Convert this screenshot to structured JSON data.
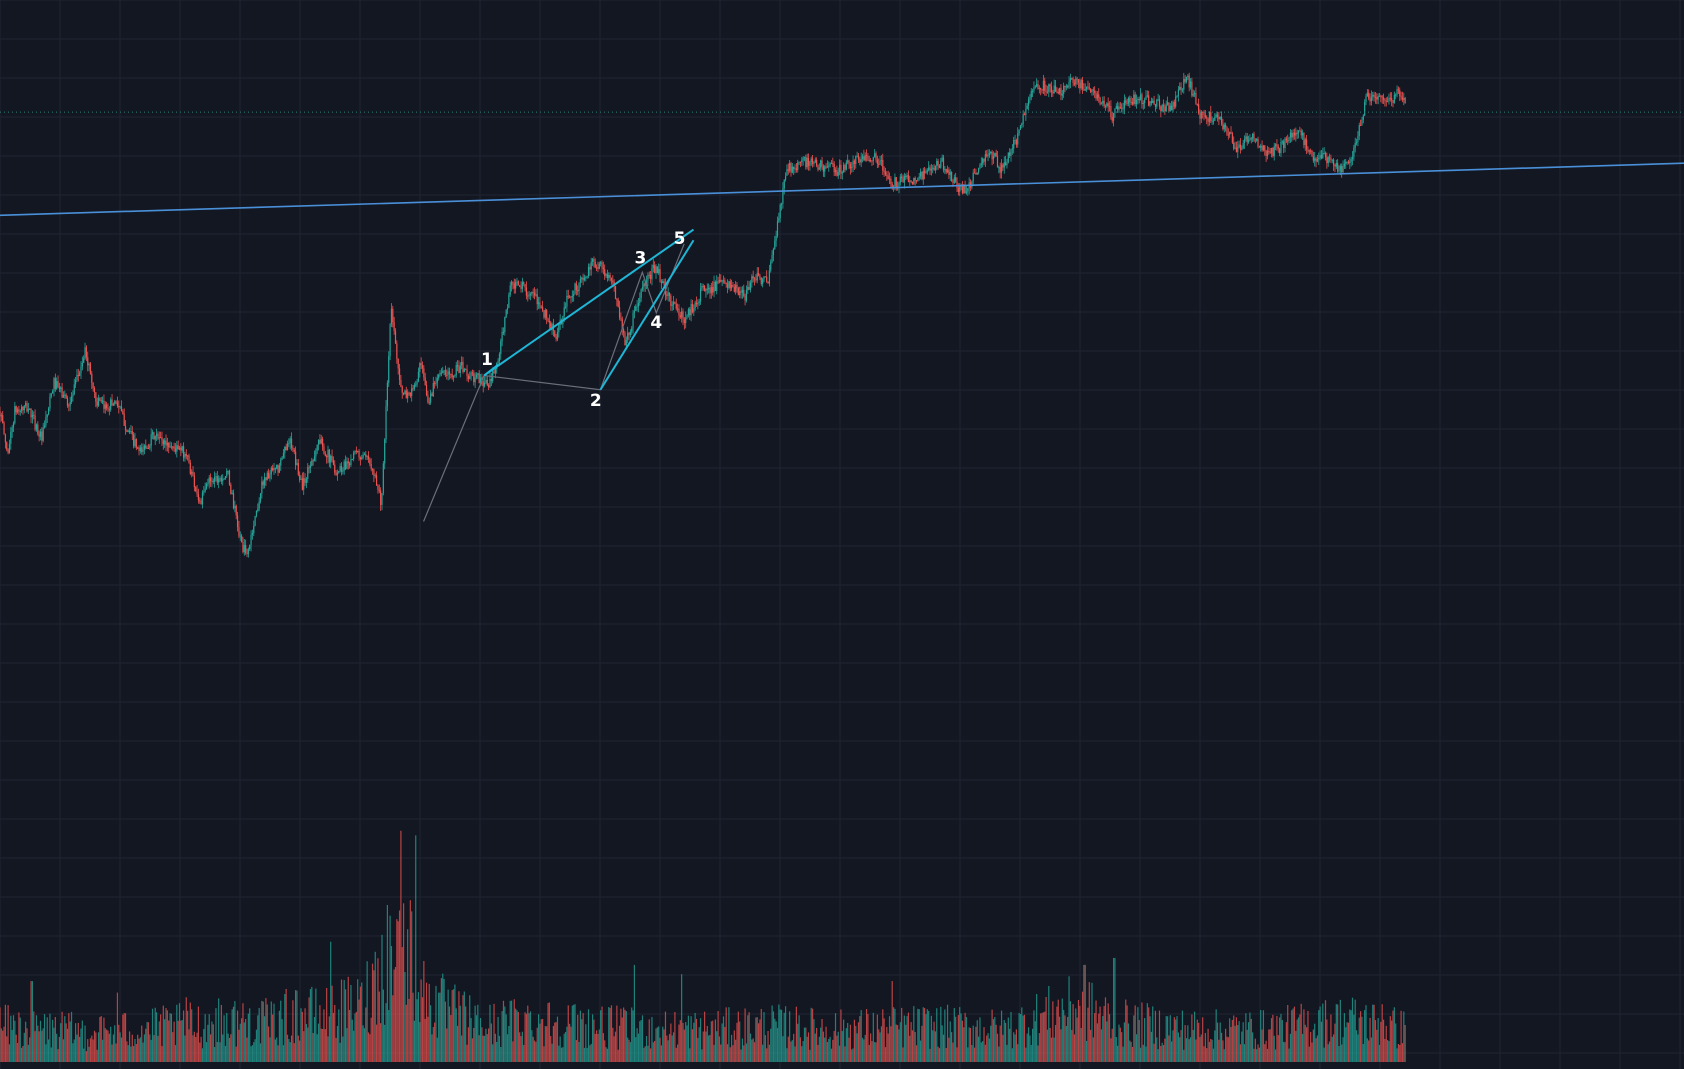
{
  "chart_data": {
    "type": "candlestick",
    "title": "",
    "xlabel": "",
    "ylabel": "",
    "grid": true,
    "ylim": [
      0,
      1000
    ],
    "xlim": [
      0,
      1000
    ],
    "colors": {
      "background": "#131722",
      "grid": "#1f2433",
      "up": "#26a69a",
      "down": "#ef5350",
      "trendline": "#4a90d9",
      "wedge": "#1fb6d6",
      "wave_path": "#6b6f7a",
      "price_line": "#2a7f7a"
    },
    "price_anchors": [
      {
        "x": 0,
        "y": 490
      },
      {
        "x": 8,
        "y": 430
      },
      {
        "x": 16,
        "y": 490
      },
      {
        "x": 30,
        "y": 495
      },
      {
        "x": 45,
        "y": 450
      },
      {
        "x": 58,
        "y": 530
      },
      {
        "x": 75,
        "y": 500
      },
      {
        "x": 92,
        "y": 575
      },
      {
        "x": 103,
        "y": 505
      },
      {
        "x": 112,
        "y": 495
      },
      {
        "x": 125,
        "y": 505
      },
      {
        "x": 135,
        "y": 470
      },
      {
        "x": 150,
        "y": 430
      },
      {
        "x": 165,
        "y": 455
      },
      {
        "x": 185,
        "y": 440
      },
      {
        "x": 200,
        "y": 430
      },
      {
        "x": 215,
        "y": 360
      },
      {
        "x": 225,
        "y": 395
      },
      {
        "x": 245,
        "y": 400
      },
      {
        "x": 258,
        "y": 310
      },
      {
        "x": 265,
        "y": 285
      },
      {
        "x": 283,
        "y": 395
      },
      {
        "x": 300,
        "y": 410
      },
      {
        "x": 310,
        "y": 453
      },
      {
        "x": 325,
        "y": 385
      },
      {
        "x": 343,
        "y": 450
      },
      {
        "x": 362,
        "y": 405
      },
      {
        "x": 383,
        "y": 430
      },
      {
        "x": 400,
        "y": 415
      },
      {
        "x": 410,
        "y": 360
      },
      {
        "x": 420,
        "y": 635
      },
      {
        "x": 432,
        "y": 510
      },
      {
        "x": 445,
        "y": 520
      },
      {
        "x": 452,
        "y": 555
      },
      {
        "x": 460,
        "y": 500
      },
      {
        "x": 470,
        "y": 545
      },
      {
        "x": 480,
        "y": 540
      },
      {
        "x": 495,
        "y": 553
      },
      {
        "x": 505,
        "y": 538
      },
      {
        "x": 515,
        "y": 535
      },
      {
        "x": 525,
        "y": 525
      },
      {
        "x": 535,
        "y": 558
      },
      {
        "x": 548,
        "y": 665
      },
      {
        "x": 562,
        "y": 665
      },
      {
        "x": 580,
        "y": 640
      },
      {
        "x": 598,
        "y": 593
      },
      {
        "x": 610,
        "y": 650
      },
      {
        "x": 630,
        "y": 680
      },
      {
        "x": 638,
        "y": 700
      },
      {
        "x": 645,
        "y": 695
      },
      {
        "x": 660,
        "y": 663
      },
      {
        "x": 672,
        "y": 585
      },
      {
        "x": 688,
        "y": 655
      },
      {
        "x": 705,
        "y": 695
      },
      {
        "x": 715,
        "y": 655
      },
      {
        "x": 735,
        "y": 618
      },
      {
        "x": 755,
        "y": 660
      },
      {
        "x": 780,
        "y": 670
      },
      {
        "x": 800,
        "y": 650
      },
      {
        "x": 810,
        "y": 682
      },
      {
        "x": 825,
        "y": 670
      },
      {
        "x": 845,
        "y": 830
      },
      {
        "x": 862,
        "y": 840
      },
      {
        "x": 882,
        "y": 835
      },
      {
        "x": 900,
        "y": 828
      },
      {
        "x": 920,
        "y": 842
      },
      {
        "x": 940,
        "y": 850
      },
      {
        "x": 958,
        "y": 810
      },
      {
        "x": 978,
        "y": 815
      },
      {
        "x": 998,
        "y": 825
      },
      {
        "x": 1012,
        "y": 840
      },
      {
        "x": 1030,
        "y": 800
      },
      {
        "x": 1040,
        "y": 805
      },
      {
        "x": 1055,
        "y": 843
      },
      {
        "x": 1068,
        "y": 850
      },
      {
        "x": 1075,
        "y": 830
      },
      {
        "x": 1092,
        "y": 870
      },
      {
        "x": 1110,
        "y": 950
      },
      {
        "x": 1125,
        "y": 945
      },
      {
        "x": 1140,
        "y": 940
      },
      {
        "x": 1152,
        "y": 955
      },
      {
        "x": 1170,
        "y": 942
      },
      {
        "x": 1185,
        "y": 925
      },
      {
        "x": 1195,
        "y": 905
      },
      {
        "x": 1210,
        "y": 925
      },
      {
        "x": 1225,
        "y": 930
      },
      {
        "x": 1245,
        "y": 920
      },
      {
        "x": 1258,
        "y": 915
      },
      {
        "x": 1275,
        "y": 960
      },
      {
        "x": 1290,
        "y": 905
      },
      {
        "x": 1310,
        "y": 900
      },
      {
        "x": 1330,
        "y": 855
      },
      {
        "x": 1345,
        "y": 880
      },
      {
        "x": 1360,
        "y": 850
      },
      {
        "x": 1375,
        "y": 860
      },
      {
        "x": 1395,
        "y": 885
      },
      {
        "x": 1410,
        "y": 845
      },
      {
        "x": 1425,
        "y": 845
      },
      {
        "x": 1440,
        "y": 830
      },
      {
        "x": 1455,
        "y": 855
      },
      {
        "x": 1468,
        "y": 930
      },
      {
        "x": 1480,
        "y": 925
      },
      {
        "x": 1492,
        "y": 925
      },
      {
        "x": 1500,
        "y": 935
      },
      {
        "x": 1510,
        "y": 930
      }
    ],
    "volume_profile": [
      {
        "x": 0,
        "v": 0.22
      },
      {
        "x": 100,
        "v": 0.18
      },
      {
        "x": 190,
        "v": 0.22
      },
      {
        "x": 250,
        "v": 0.25
      },
      {
        "x": 290,
        "v": 0.24
      },
      {
        "x": 320,
        "v": 0.3
      },
      {
        "x": 345,
        "v": 0.28
      },
      {
        "x": 390,
        "v": 0.35
      },
      {
        "x": 410,
        "v": 0.6
      },
      {
        "x": 425,
        "v": 0.72
      },
      {
        "x": 440,
        "v": 0.68
      },
      {
        "x": 455,
        "v": 0.4
      },
      {
        "x": 480,
        "v": 0.32
      },
      {
        "x": 520,
        "v": 0.22
      },
      {
        "x": 560,
        "v": 0.26
      },
      {
        "x": 640,
        "v": 0.22
      },
      {
        "x": 700,
        "v": 0.2
      },
      {
        "x": 760,
        "v": 0.2
      },
      {
        "x": 830,
        "v": 0.22
      },
      {
        "x": 900,
        "v": 0.2
      },
      {
        "x": 1000,
        "v": 0.22
      },
      {
        "x": 1080,
        "v": 0.2
      },
      {
        "x": 1120,
        "v": 0.28
      },
      {
        "x": 1160,
        "v": 0.34
      },
      {
        "x": 1200,
        "v": 0.24
      },
      {
        "x": 1280,
        "v": 0.2
      },
      {
        "x": 1360,
        "v": 0.2
      },
      {
        "x": 1420,
        "v": 0.24
      },
      {
        "x": 1450,
        "v": 0.26
      },
      {
        "x": 1510,
        "v": 0.2
      }
    ],
    "volume_spikes": [
      {
        "x": 34,
        "v": 0.35
      },
      {
        "x": 126,
        "v": 0.3
      },
      {
        "x": 200,
        "v": 0.28
      },
      {
        "x": 355,
        "v": 0.52
      },
      {
        "x": 410,
        "v": 0.55
      },
      {
        "x": 431,
        "v": 1.0
      },
      {
        "x": 447,
        "v": 0.98
      },
      {
        "x": 472,
        "v": 0.3
      },
      {
        "x": 682,
        "v": 0.42
      },
      {
        "x": 732,
        "v": 0.38
      },
      {
        "x": 958,
        "v": 0.35
      },
      {
        "x": 1165,
        "v": 0.42
      },
      {
        "x": 1197,
        "v": 0.45
      },
      {
        "x": 1418,
        "v": 0.24
      },
      {
        "x": 1485,
        "v": 0.25
      }
    ],
    "current_price": 910,
    "annotations": {
      "trendline": {
        "x1": 0,
        "y1": 765,
        "x2": 2100,
        "y2": 850
      },
      "wedge_upper": {
        "x1": 520,
        "y1": 540,
        "x2": 745,
        "y2": 745
      },
      "wedge_lower": {
        "x1": 645,
        "y1": 520,
        "x2": 745,
        "y2": 730
      },
      "wedge_base": {
        "x1": 520,
        "y1": 540,
        "x2": 535,
        "y2": 555
      },
      "wave_path": [
        {
          "x": 455,
          "y": 335
        },
        {
          "x": 520,
          "y": 540
        },
        {
          "x": 645,
          "y": 520
        },
        {
          "x": 690,
          "y": 685
        },
        {
          "x": 705,
          "y": 628
        },
        {
          "x": 735,
          "y": 725
        }
      ],
      "wave_labels": [
        {
          "text": "1",
          "x": 523,
          "y": 555
        },
        {
          "text": "2",
          "x": 640,
          "y": 497
        },
        {
          "text": "3",
          "x": 688,
          "y": 697
        },
        {
          "text": "4",
          "x": 705,
          "y": 607
        },
        {
          "text": "5",
          "x": 730,
          "y": 725
        }
      ]
    }
  }
}
